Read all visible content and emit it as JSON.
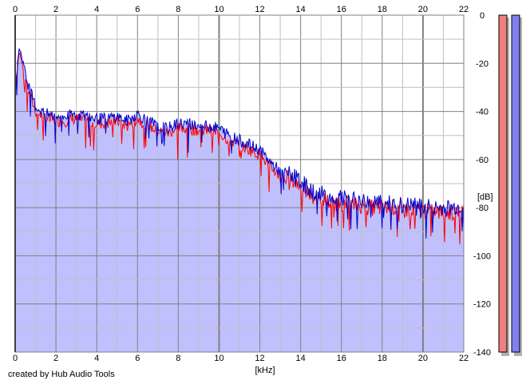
{
  "credit": "created by Hub Audio Tools",
  "colors": {
    "background": "#ffffff",
    "fill": "#c0c0ff",
    "grid_minor": "#c0c0c0",
    "grid_major": "#808080",
    "channel_left": "#ff0000",
    "channel_right": "#0000c8",
    "meter_left": "#f08080",
    "meter_right": "#8080f0"
  },
  "chart_data": {
    "type": "line",
    "title": "",
    "xlabel": "[kHz]",
    "ylabel": "[dB]",
    "xlim": [
      0,
      22
    ],
    "ylim": [
      -140,
      0
    ],
    "x_ticks": [
      "0",
      "2",
      "4",
      "6",
      "8",
      "10",
      "12",
      "14",
      "16",
      "18",
      "20",
      "22"
    ],
    "y_ticks": [
      "0",
      "-20",
      "-40",
      "-60",
      "-80",
      "-100",
      "-120",
      "-140"
    ],
    "grid": true,
    "filled_area": true,
    "series": [
      {
        "color": "#ff0000",
        "x": [
          0,
          0.2,
          0.4,
          0.6,
          0.8,
          1,
          1.5,
          2,
          2.5,
          3,
          3.5,
          4,
          4.5,
          5,
          5.5,
          6,
          6.5,
          7,
          7.5,
          8,
          8.5,
          9,
          9.5,
          10,
          10.5,
          11,
          11.5,
          12,
          12.5,
          13,
          13.5,
          14,
          14.5,
          15,
          15.5,
          16,
          16.5,
          17,
          17.5,
          18,
          18.5,
          19,
          19.5,
          20,
          20.5,
          21,
          21.5,
          22
        ],
        "y": [
          -30,
          -15,
          -22,
          -30,
          -35,
          -40,
          -43,
          -44,
          -44,
          -43,
          -44,
          -45,
          -45,
          -44,
          -46,
          -43,
          -46,
          -48,
          -49,
          -47,
          -47,
          -48,
          -48,
          -49,
          -52,
          -54,
          -56,
          -58,
          -63,
          -67,
          -68,
          -71,
          -75,
          -76,
          -78,
          -78,
          -79,
          -79,
          -80,
          -80,
          -80,
          -81,
          -81,
          -81,
          -82,
          -82,
          -82,
          -81
        ]
      },
      {
        "color": "#0000c8",
        "x": [
          0,
          0.2,
          0.4,
          0.6,
          0.8,
          1,
          1.5,
          2,
          2.5,
          3,
          3.5,
          4,
          4.5,
          5,
          5.5,
          6,
          6.5,
          7,
          7.5,
          8,
          8.5,
          9,
          9.5,
          10,
          10.5,
          11,
          11.5,
          12,
          12.5,
          13,
          13.5,
          14,
          14.5,
          15,
          15.5,
          16,
          16.5,
          17,
          17.5,
          18,
          18.5,
          19,
          19.5,
          20,
          20.5,
          21,
          21.5,
          22
        ],
        "y": [
          -28,
          -13,
          -20,
          -28,
          -33,
          -38,
          -41,
          -42,
          -42,
          -41,
          -42,
          -43,
          -43,
          -42,
          -44,
          -41,
          -44,
          -46,
          -47,
          -45,
          -45,
          -46,
          -46,
          -47,
          -50,
          -52,
          -54,
          -56,
          -61,
          -65,
          -66,
          -69,
          -73,
          -74,
          -76,
          -76,
          -77,
          -77,
          -78,
          -78,
          -78,
          -79,
          -79,
          -79,
          -80,
          -80,
          -80,
          -79
        ]
      }
    ],
    "level_meters": [
      {
        "channel": "left",
        "color": "#f08080",
        "level_db": 0
      },
      {
        "channel": "right",
        "color": "#8080f0",
        "level_db": 0
      }
    ]
  }
}
